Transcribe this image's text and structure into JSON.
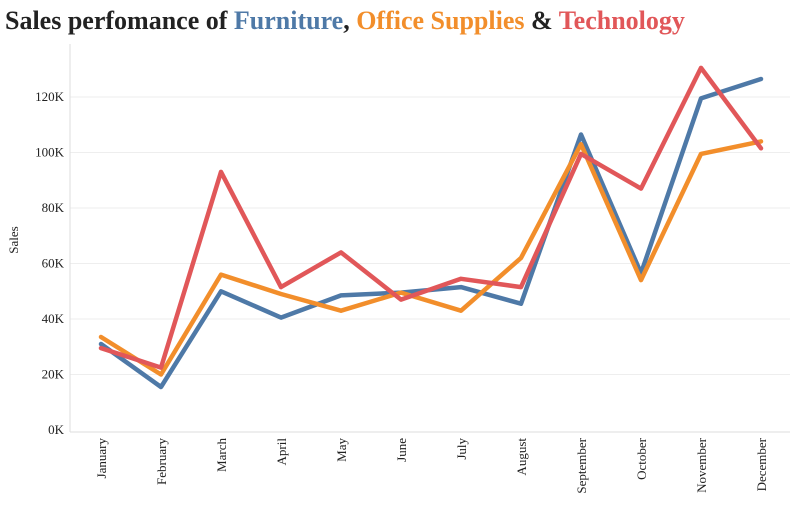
{
  "title_parts": {
    "prefix": "Sales perfomance of ",
    "series1": "Furniture",
    "sep1": ", ",
    "series2": "Office Supplies",
    "sep2": " & ",
    "series3": "Technology"
  },
  "colors": {
    "title": "#222222",
    "furniture": "#4e79a7",
    "office_supplies": "#f28e2b",
    "technology": "#e15759",
    "gridline": "#eeeeee",
    "axis": "#dddddd"
  },
  "chart_data": {
    "type": "line",
    "title": "Sales perfomance of Furniture, Office Supplies & Technology",
    "xlabel": "",
    "ylabel": "Sales",
    "categories": [
      "January",
      "February",
      "March",
      "April",
      "May",
      "June",
      "July",
      "August",
      "September",
      "October",
      "November",
      "December"
    ],
    "ylim": [
      0,
      140000
    ],
    "yticks": [
      0,
      20000,
      40000,
      60000,
      80000,
      100000,
      120000
    ],
    "ytick_labels": [
      "0K",
      "20K",
      "40K",
      "60K",
      "80K",
      "100K",
      "120K"
    ],
    "grid": true,
    "legend": "none",
    "series": [
      {
        "name": "Furniture",
        "color": "#4e79a7",
        "values": [
          31000,
          15500,
          50000,
          40500,
          48500,
          49500,
          51500,
          45500,
          106500,
          56500,
          119500,
          126500
        ]
      },
      {
        "name": "Office Supplies",
        "color": "#f28e2b",
        "values": [
          33500,
          20000,
          56000,
          49000,
          43000,
          49500,
          43000,
          62000,
          103000,
          54000,
          99500,
          104000
        ]
      },
      {
        "name": "Technology",
        "color": "#e15759",
        "values": [
          29500,
          22500,
          93000,
          51500,
          64000,
          47000,
          54500,
          51500,
          99500,
          87000,
          130500,
          101500
        ]
      }
    ]
  }
}
